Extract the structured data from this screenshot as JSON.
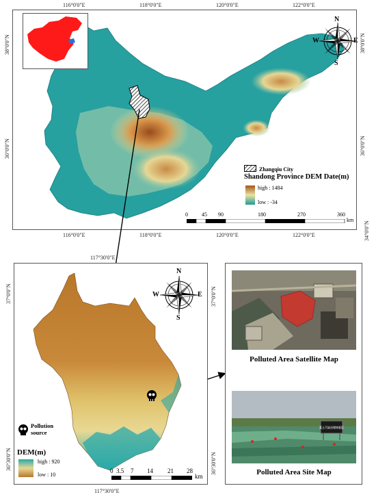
{
  "top_map": {
    "top_lon_ticks": [
      "116°0'0\"E",
      "118°0'0\"E",
      "120°0'0\"E",
      "122°0'0\"E"
    ],
    "bottom_lon_ticks": [
      "116°0'0\"E",
      "118°0'0\"E",
      "120°0'0\"E",
      "122°0'0\"E"
    ],
    "left_lat_ticks": [
      "38°0'0\"N",
      "36°0'0\"N"
    ],
    "right_lat_ticks": [
      "38°0'0\"N",
      "36°0'0\"N",
      "34°0'0\"N"
    ],
    "compass": {
      "n": "N",
      "s": "S",
      "e": "E",
      "w": "W"
    },
    "legend": {
      "city_label": "Zhangqiu City",
      "title": "Shandong Province DEM Date(m)",
      "high_label": "high : 1484",
      "low_label": "low : -34"
    },
    "scale": {
      "ticks": [
        "0",
        "45",
        "90",
        "180",
        "270",
        "360"
      ],
      "unit": "km"
    },
    "colors": {
      "sea": "#ffffff",
      "low": "#1f9a9a",
      "mid": "#e8e3a0",
      "high": "#a5541e",
      "inset_china": "#ff1a1a",
      "inset_shandong": "#2b6fd6"
    }
  },
  "bottom_map": {
    "top_lon_tick": "117°30'0\"E",
    "bottom_lon_tick": "117°30'0\"E",
    "right_lat_ticks": [
      "37°0'0\"N",
      "36°30'0\"N"
    ],
    "left_lat_ticks": [
      "37°0'0\"N",
      "36°30'0\"N"
    ],
    "compass": {
      "n": "N",
      "s": "S",
      "e": "E",
      "w": "W"
    },
    "pollution_label": "Pollution source",
    "legend": {
      "title": "DEM(m)",
      "high_label": "high : 920",
      "low_label": "low :  10"
    },
    "scale": {
      "ticks": [
        "0",
        "3.5",
        "7",
        "14",
        "21",
        "28"
      ],
      "unit": "km"
    },
    "colors": {
      "high": "#b8772a",
      "mid": "#e0c26b",
      "low": "#2aa9a9"
    }
  },
  "photos": {
    "satellite_caption": "Polluted Area Satellite Map",
    "site_caption": "Polluted Area Site Map",
    "sign_text": "某土污染治理修复区"
  }
}
